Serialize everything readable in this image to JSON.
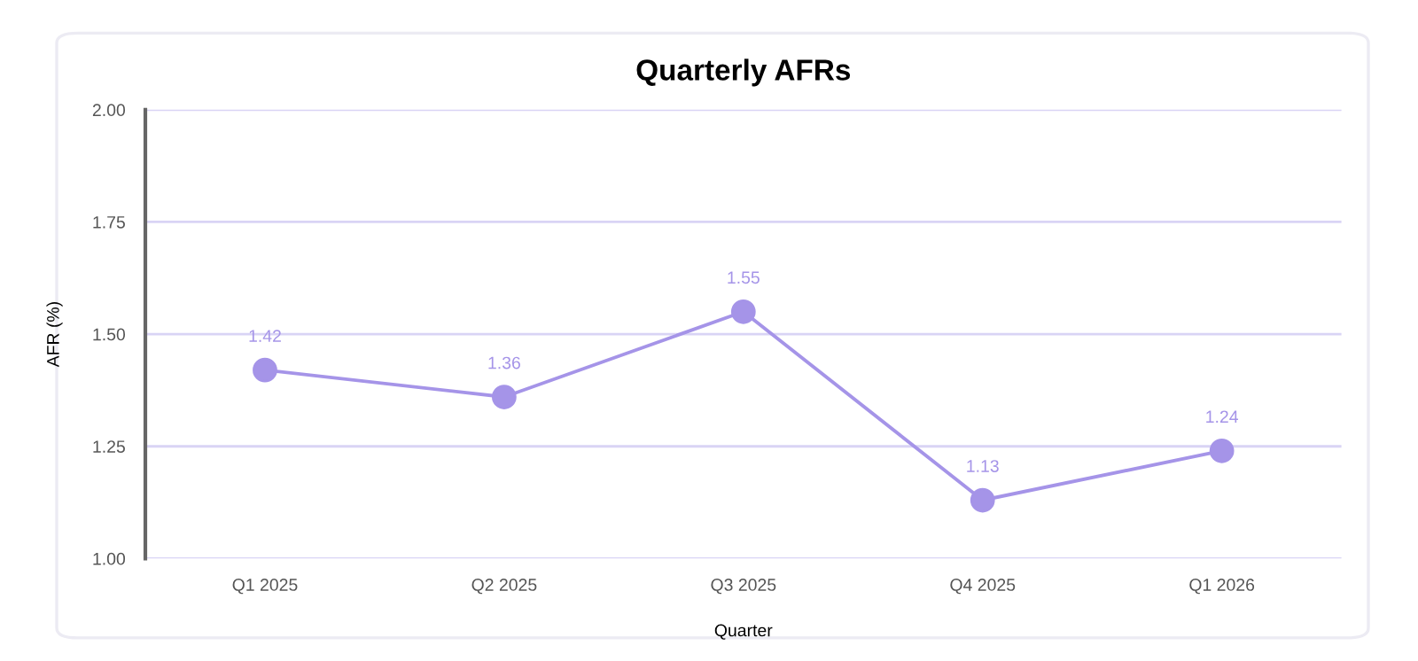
{
  "chart_data": {
    "type": "line",
    "title": "Quarterly AFRs",
    "xlabel": "Quarter",
    "ylabel": "AFR (%)",
    "categories": [
      "Q1 2025",
      "Q2 2025",
      "Q3 2025",
      "Q4 2025",
      "Q1 2026"
    ],
    "series": [
      {
        "color": "#a594e8",
        "values": [
          1.42,
          1.36,
          1.55,
          1.13,
          1.24
        ]
      }
    ],
    "ylim": [
      1.0,
      2.0
    ],
    "yticks": [
      {
        "value": 1.0,
        "label": "1.00"
      },
      {
        "value": 1.25,
        "label": "1.25"
      },
      {
        "value": 1.5,
        "label": "1.50"
      },
      {
        "value": 1.75,
        "label": "1.75"
      },
      {
        "value": 2.0,
        "label": "2.00"
      }
    ],
    "grid": "y",
    "marker": "circle",
    "line_style": "solid",
    "data_labels": true
  }
}
